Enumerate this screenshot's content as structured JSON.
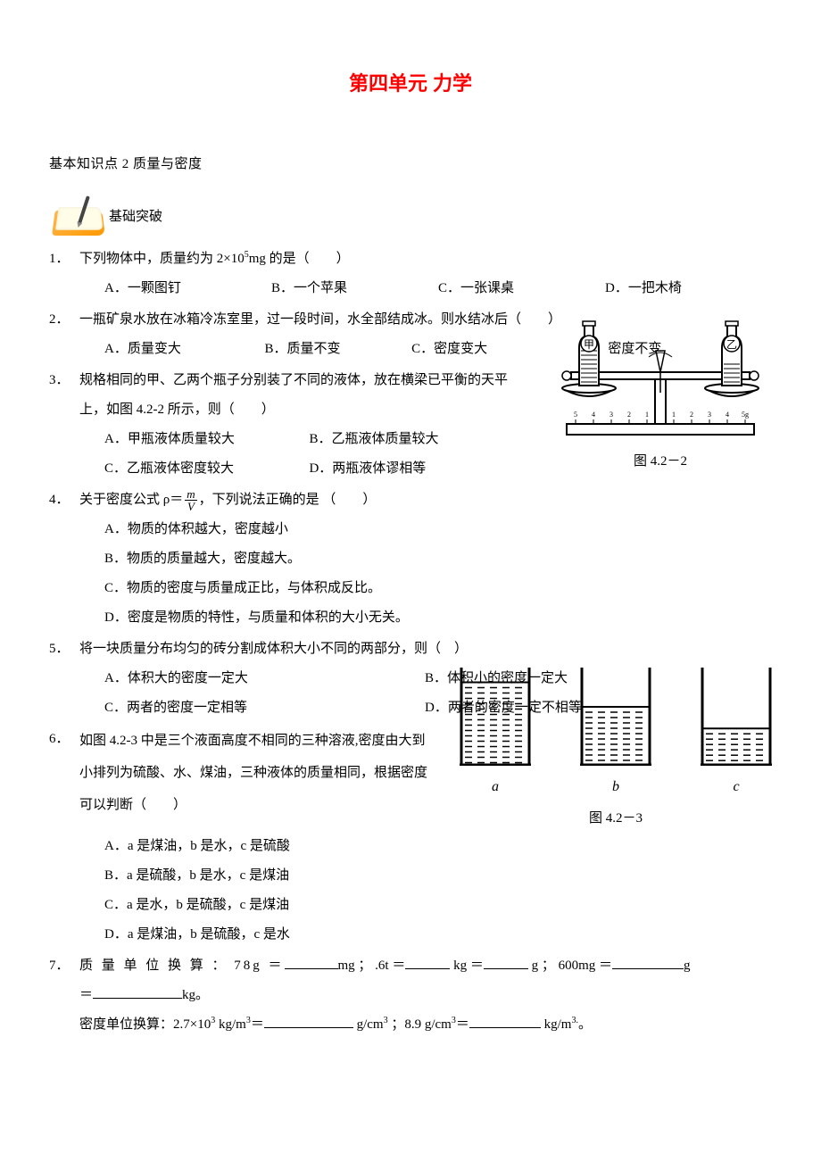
{
  "unit_title": "第四单元  力学",
  "subtitle": "基本知识点 2  质量与密度",
  "section_name": "基础突破",
  "figures": {
    "balance": {
      "caption": "图 4.2－2",
      "bottle_left_label": "甲",
      "bottle_right_label": "乙",
      "ruler_marks": [
        "5",
        "4",
        "3",
        "2",
        "1",
        "0",
        "1",
        "2",
        "3",
        "4",
        "5g"
      ]
    },
    "beakers": {
      "caption": "图 4.2－3",
      "items": [
        {
          "label": "a",
          "fill": 0.85
        },
        {
          "label": "b",
          "fill": 0.6
        },
        {
          "label": "c",
          "fill": 0.38
        }
      ]
    }
  },
  "q1": {
    "num": "1．",
    "stem_pre": "下列物体中，质量约为 2×10",
    "stem_sup": "5",
    "stem_post": "mg 的是（　　）",
    "opts": [
      "A．一颗图钉",
      "B．一个苹果",
      "C．一张课桌",
      "D．一把木椅"
    ]
  },
  "q2": {
    "num": "2．",
    "stem": "一瓶矿泉水放在冰箱冷冻室里，过一段时间，水全部结成冰。则水结冰后（　　）",
    "opts": [
      "A．质量变大",
      "B．质量不变",
      "C．密度变大",
      "D．密度不变"
    ]
  },
  "q3": {
    "num": "3．",
    "stem": "规格相同的甲、乙两个瓶子分别装了不同的液体，放在横梁已平衡的天平上，如图 4.2-2 所示，则（　　）",
    "opts": [
      "A．甲瓶液体质量较大",
      "B．乙瓶液体质量较大",
      "C．乙瓶液体密度较大",
      "D．两瓶液体谬相等"
    ]
  },
  "q4": {
    "num": "4．",
    "stem_pre": "关于密度公式 ρ＝",
    "stem_post": "，下列说法正确的是 （　　）",
    "frac_n": "m",
    "frac_d": "V",
    "opts": [
      "A．物质的体积越大，密度越小",
      "B．物质的质量越大，密度越大。",
      "C．物质的密度与质量成正比，与体积成反比。",
      "D．密度是物质的特性，与质量和体积的大小无关。"
    ]
  },
  "q5": {
    "num": "5．",
    "stem": "将一块质量分布均匀的砖分割成体积大小不同的两部分，则（　）",
    "opts": [
      "A．体积大的密度一定大",
      "B．体积小的密度一定大",
      "C．两者的密度一定相等",
      "D．两者的密度一定不相等"
    ]
  },
  "q6": {
    "num": "6．",
    "stem": "如图 4.2-3 中是三个液面高度不相同的三种溶液,密度由大到小排列为硫酸、水、煤油，三种液体的质量相同，根据密度可以判断（　　）",
    "opts": [
      "A．a 是煤油，b 是水，c 是硫酸",
      "B．a 是硫酸，b 是水，c 是煤油",
      "C．a 是水，b 是硫酸，c 是煤油",
      "D．a 是煤油，b 是硫酸，c 是水"
    ]
  },
  "q7": {
    "num": "7．",
    "l1_pre": "质 量 单 位 换 算 ： 78g ＝",
    "l1_m1": "mg ； .6t ＝",
    "l1_m2": " kg ＝",
    "l1_m3": " g ；  600mg ＝",
    "l1_end": "g",
    "l2_pre": "＝",
    "l2_end": "kg。",
    "l3_pre": "密度单位换算：2.7×10",
    "l3_sup": "3",
    "l3_m1": " kg/m",
    "l3_m1_sup": "3",
    "l3_eq": "＝",
    "l3_m2": " g/cm",
    "l3_m2_sup": "3",
    "l3_sep": " ；8.9 g/cm",
    "l3_sep_sup": "3",
    "l3_eq2": "＝",
    "l3_end": " kg/m",
    "l3_end_sup": "3.",
    "l3_period": "。"
  }
}
